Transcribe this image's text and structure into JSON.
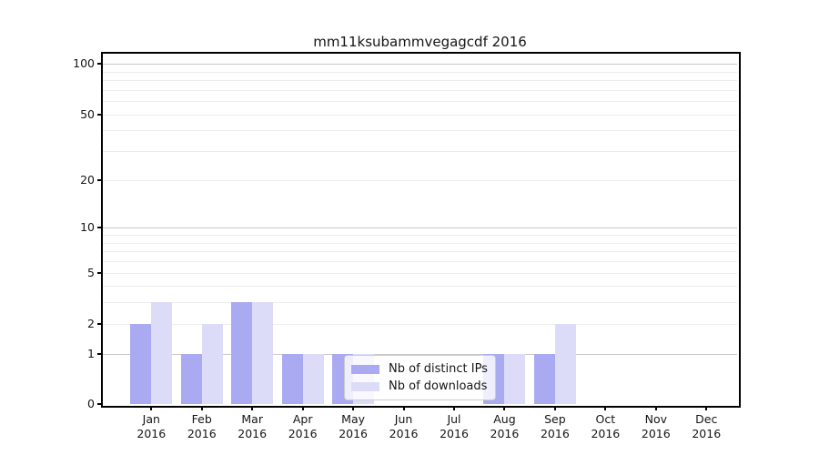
{
  "chart_data": {
    "type": "bar",
    "title": "mm11ksubammvegagcdf 2016",
    "x_tick_year": "2016",
    "months": [
      "Jan",
      "Feb",
      "Mar",
      "Apr",
      "May",
      "Jun",
      "Jul",
      "Aug",
      "Sep",
      "Oct",
      "Nov",
      "Dec"
    ],
    "series": [
      {
        "name": "Nb of distinct IPs",
        "color": "#aaaaf2",
        "values": [
          2,
          1,
          3,
          1,
          1,
          0,
          0,
          1,
          1,
          0,
          0,
          0
        ]
      },
      {
        "name": "Nb of downloads",
        "color": "#dcdcf8",
        "values": [
          3,
          2,
          3,
          1,
          1,
          0,
          0,
          1,
          2,
          0,
          0,
          0
        ]
      }
    ],
    "y_scale": "log1p",
    "ylim": [
      0,
      115
    ],
    "y_ticks": [
      0,
      1,
      2,
      5,
      10,
      20,
      50,
      100
    ],
    "y_major_gridlines": [
      1,
      10,
      100
    ],
    "y_minor_gridlines": [
      2,
      3,
      4,
      5,
      6,
      7,
      8,
      9,
      20,
      30,
      40,
      50,
      60,
      70,
      80,
      90
    ],
    "grid": "horizontal",
    "legend_position": "lower center",
    "colors": {
      "grid_minor": "#ececec",
      "grid_major": "#c9c9c9",
      "axis": "#000000",
      "text": "#151515",
      "legend_border": "#cccccc",
      "background": "#ffffff"
    }
  }
}
